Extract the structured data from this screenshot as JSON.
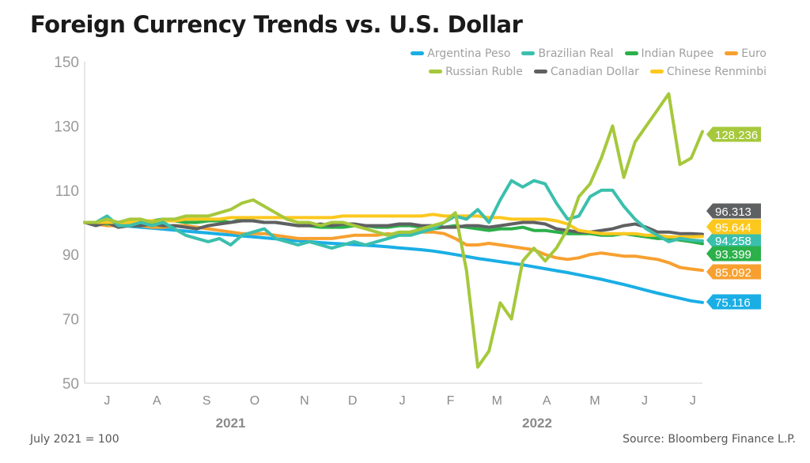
{
  "title": "Foreign Currency Trends vs. U.S. Dollar",
  "footnote": "July 2021 = 100",
  "source": "Source: Bloomberg Finance L.P.",
  "chart_data": {
    "type": "line",
    "title": "Foreign Currency Trends vs. U.S. Dollar",
    "xlabel": "",
    "ylabel": "",
    "ylim": [
      50,
      150
    ],
    "yticks": [
      50,
      70,
      90,
      110,
      130,
      150
    ],
    "xlim": [
      "2021-07-02",
      "2022-07-22"
    ],
    "month_ticks": [
      {
        "label": "J",
        "date": "2021-07-16"
      },
      {
        "label": "A",
        "date": "2021-08-16"
      },
      {
        "label": "S",
        "date": "2021-09-16"
      },
      {
        "label": "O",
        "date": "2021-10-16"
      },
      {
        "label": "N",
        "date": "2021-11-16"
      },
      {
        "label": "D",
        "date": "2021-12-16"
      },
      {
        "label": "J",
        "date": "2022-01-16"
      },
      {
        "label": "F",
        "date": "2022-02-15"
      },
      {
        "label": "M",
        "date": "2022-03-16"
      },
      {
        "label": "A",
        "date": "2022-04-16"
      },
      {
        "label": "M",
        "date": "2022-05-16"
      },
      {
        "label": "J",
        "date": "2022-06-16"
      },
      {
        "label": "J",
        "date": "2022-07-16"
      }
    ],
    "year_labels": [
      {
        "label": "2021",
        "date": "2021-10-01"
      },
      {
        "label": "2022",
        "date": "2022-04-10"
      }
    ],
    "grid": false,
    "legend": "top-right",
    "x": [
      "2021-07-02",
      "2021-07-09",
      "2021-07-16",
      "2021-07-23",
      "2021-07-30",
      "2021-08-06",
      "2021-08-13",
      "2021-08-20",
      "2021-08-27",
      "2021-09-03",
      "2021-09-10",
      "2021-09-17",
      "2021-09-24",
      "2021-10-01",
      "2021-10-08",
      "2021-10-15",
      "2021-10-22",
      "2021-10-29",
      "2021-11-05",
      "2021-11-12",
      "2021-11-19",
      "2021-11-26",
      "2021-12-03",
      "2021-12-10",
      "2021-12-17",
      "2021-12-24",
      "2021-12-31",
      "2022-01-07",
      "2022-01-14",
      "2022-01-21",
      "2022-01-28",
      "2022-02-04",
      "2022-02-11",
      "2022-02-18",
      "2022-02-25",
      "2022-03-04",
      "2022-03-11",
      "2022-03-18",
      "2022-03-25",
      "2022-04-01",
      "2022-04-08",
      "2022-04-15",
      "2022-04-22",
      "2022-04-29",
      "2022-05-06",
      "2022-05-13",
      "2022-05-20",
      "2022-05-27",
      "2022-06-03",
      "2022-06-10",
      "2022-06-17",
      "2022-06-24",
      "2022-07-01",
      "2022-07-08",
      "2022-07-15",
      "2022-07-22"
    ],
    "series": [
      {
        "name": "Argentina Peso",
        "color": "#1aaee5",
        "end_label": "75.116",
        "values": [
          100,
          99.7,
          99.4,
          99.1,
          98.8,
          98.5,
          98.2,
          97.9,
          97.6,
          97.3,
          97.0,
          96.7,
          96.4,
          96.1,
          95.8,
          95.5,
          95.2,
          94.9,
          94.6,
          94.3,
          94.0,
          93.7,
          93.5,
          93.3,
          93.1,
          92.9,
          92.7,
          92.4,
          92.1,
          91.8,
          91.5,
          91.1,
          90.6,
          90.0,
          89.4,
          88.8,
          88.3,
          87.8,
          87.3,
          86.8,
          86.2,
          85.6,
          85.0,
          84.4,
          83.7,
          83.0,
          82.3,
          81.5,
          80.7,
          79.8,
          78.9,
          78.0,
          77.2,
          76.4,
          75.6,
          75.116
        ]
      },
      {
        "name": "Brazilian Real",
        "color": "#3bbfad",
        "end_label": "94.258",
        "values": [
          100,
          100,
          102,
          99,
          99,
          100,
          99,
          100,
          98,
          96,
          95,
          94,
          95,
          93,
          96,
          97,
          98,
          95,
          94,
          93,
          94,
          93,
          92,
          93,
          94,
          93,
          94,
          95,
          96,
          96,
          97,
          98,
          100,
          102,
          101,
          104,
          100,
          107,
          113,
          111,
          113,
          112,
          106,
          101,
          102,
          108,
          110,
          110,
          105,
          101,
          98,
          96,
          94,
          95,
          94.5,
          94.258
        ]
      },
      {
        "name": "Indian Rupee",
        "color": "#2bb04a",
        "end_label": "93.399",
        "values": [
          100,
          100,
          99.5,
          100,
          100.5,
          100,
          100.5,
          101,
          100.5,
          100,
          100,
          100.5,
          100.5,
          100,
          101,
          100.5,
          100,
          100,
          99.5,
          99,
          99,
          98.5,
          98.5,
          98.5,
          99,
          99,
          98.5,
          98.5,
          99,
          99,
          98.5,
          98,
          98.5,
          99,
          98.5,
          98,
          97.5,
          98,
          98,
          98.5,
          97.5,
          97.5,
          97,
          96.5,
          96.5,
          96.5,
          96,
          96,
          96.5,
          96,
          95.5,
          95,
          95,
          94.5,
          94,
          93.399
        ]
      },
      {
        "name": "Euro",
        "color": "#f7a030",
        "end_label": "85.092",
        "values": [
          100,
          99.5,
          99,
          99,
          99,
          99,
          98.5,
          98.5,
          99,
          99,
          98.5,
          98,
          97.5,
          97,
          96.5,
          96.5,
          96.5,
          96,
          95.5,
          95,
          95,
          95,
          95,
          95.5,
          96,
          96,
          96,
          96.5,
          96,
          97,
          97,
          97,
          96.5,
          95,
          93,
          93,
          93.5,
          93,
          92.5,
          92,
          91.5,
          90,
          89,
          88.5,
          89,
          90,
          90.5,
          90,
          89.5,
          89.5,
          89,
          88.5,
          87.5,
          86,
          85.5,
          85.092
        ]
      },
      {
        "name": "Russian Ruble",
        "color": "#a6c83c",
        "end_label": "128.236",
        "values": [
          100,
          100,
          101,
          100,
          101,
          101,
          100,
          101,
          101,
          102,
          102,
          102,
          103,
          104,
          106,
          107,
          105,
          103,
          101,
          100,
          100,
          99,
          100,
          100,
          99,
          98,
          97,
          96,
          97,
          97,
          98,
          99,
          100,
          103,
          85,
          55,
          60,
          75,
          70,
          88,
          92,
          88,
          92,
          98,
          108,
          112,
          120,
          130,
          114,
          125,
          130,
          135,
          140,
          118,
          120,
          128.236
        ]
      },
      {
        "name": "Canadian Dollar",
        "color": "#5f6062",
        "end_label": "96.313",
        "values": [
          100,
          99,
          100,
          98.5,
          99,
          99,
          99.5,
          99,
          99,
          98.5,
          98,
          99,
          99.5,
          100,
          100.5,
          100.5,
          100,
          100,
          99.5,
          99,
          99,
          99.5,
          99,
          99.5,
          99.5,
          99,
          99,
          99,
          99.5,
          99.5,
          99,
          99,
          98.5,
          98.5,
          99,
          99,
          98.5,
          99,
          99.5,
          100,
          100,
          99.5,
          98,
          97.5,
          97,
          97,
          97.5,
          98,
          99,
          99.5,
          98.5,
          97,
          97,
          96.5,
          96.5,
          96.313
        ]
      },
      {
        "name": "Chinese Renminbi",
        "color": "#fcc81e",
        "end_label": "95.644",
        "values": [
          100,
          100,
          100,
          100,
          100,
          100.5,
          100.5,
          100.5,
          100.5,
          101,
          101,
          101,
          101,
          101.5,
          101.5,
          101.5,
          101.5,
          101.5,
          101.5,
          101.5,
          101.5,
          101.5,
          101.5,
          102,
          102,
          102,
          102,
          102,
          102,
          102,
          102,
          102.5,
          102,
          102,
          102,
          102,
          101.5,
          101.5,
          101,
          101,
          101,
          101,
          100.5,
          99.5,
          97.5,
          97,
          96.5,
          96.5,
          96.5,
          96.5,
          96,
          96,
          95.5,
          95.5,
          95.5,
          95.644
        ]
      }
    ]
  }
}
